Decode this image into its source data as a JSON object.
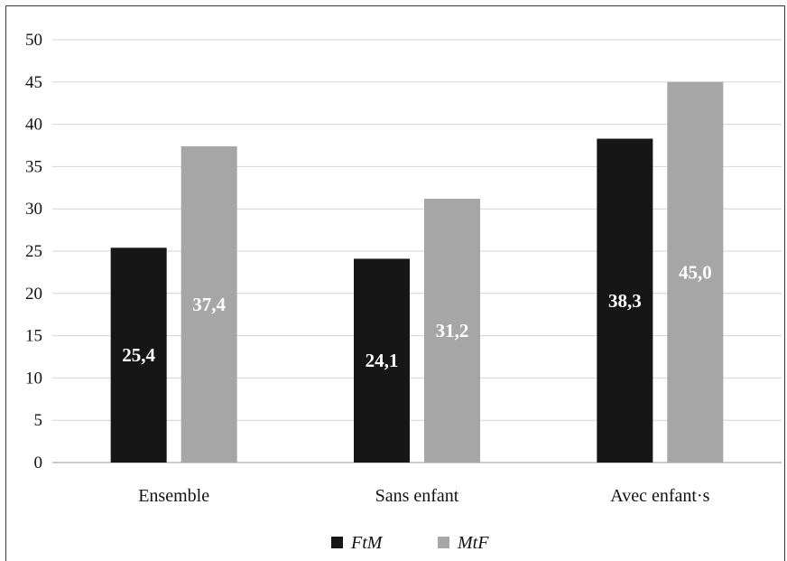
{
  "chart_data": {
    "type": "bar",
    "title": "",
    "xlabel": "",
    "ylabel": "",
    "ylim": [
      0,
      50
    ],
    "yticks": [
      "0",
      "5",
      "10",
      "15",
      "20",
      "25",
      "30",
      "35",
      "40",
      "45",
      "50"
    ],
    "grid": true,
    "legend_position": "bottom",
    "categories": [
      "Ensemble",
      "Sans enfant",
      "Avec enfant·s"
    ],
    "series": [
      {
        "name": "FtM",
        "color": "#161616",
        "values": [
          25.4,
          24.1,
          38.3
        ],
        "labels": [
          "25,4",
          "24,1",
          "38,3"
        ]
      },
      {
        "name": "MtF",
        "color": "#a6a6a6",
        "values": [
          37.4,
          31.2,
          45.0
        ],
        "labels": [
          "37,4",
          "31,2",
          "45,0"
        ]
      }
    ]
  }
}
